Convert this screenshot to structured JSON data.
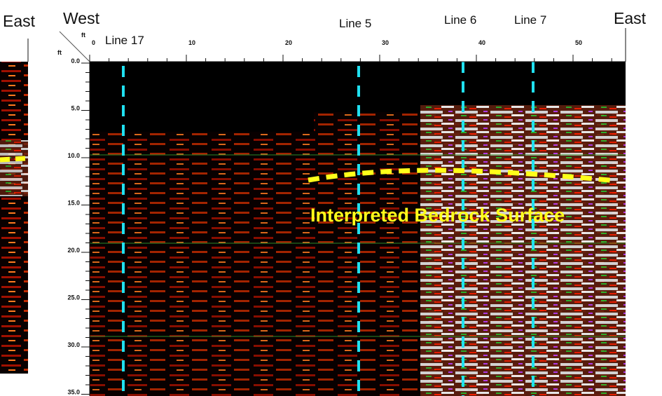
{
  "header": {
    "left_panel_label": "East",
    "west": "West",
    "east": "East"
  },
  "lines": {
    "line17": "Line 17",
    "line5": "Line 5",
    "line6": "Line 6",
    "line7": "Line 7"
  },
  "annotation": "Interpreted Bedrock Surface",
  "axis": {
    "x_unit": "ft",
    "y_unit": "ft",
    "xticks": [
      0,
      10,
      20,
      30,
      40,
      50
    ],
    "yticks": [
      {
        "value": 0,
        "label": "0.0"
      },
      {
        "value": 5,
        "label": "5.0"
      },
      {
        "value": 10,
        "label": "10.0"
      },
      {
        "value": 15,
        "label": "15.0"
      },
      {
        "value": 20,
        "label": "20.0"
      },
      {
        "value": 25,
        "label": "25.0"
      },
      {
        "value": 30,
        "label": "30.0"
      },
      {
        "value": 35,
        "label": "35.0"
      }
    ]
  }
}
